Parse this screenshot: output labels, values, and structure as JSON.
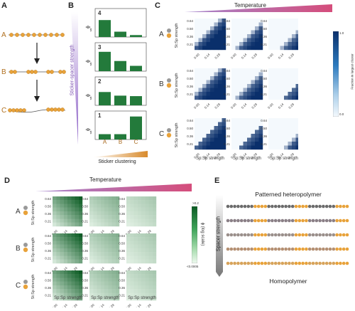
{
  "panels": {
    "A": {
      "letter": "A",
      "rows": [
        "A",
        "B",
        "C"
      ]
    },
    "B": {
      "letter": "B",
      "gradient_label": "Sticker-spacer strength",
      "xlabel": "Sticker clustering",
      "cats": [
        "A",
        "B",
        "C"
      ],
      "ylabel": "ϕ",
      "ylabel_sub": "sat"
    },
    "C": {
      "letter": "C",
      "header": "Temperature",
      "row_labels": [
        "A",
        "B",
        "C"
      ],
      "ylab": "St:Sp strength",
      "xlab": "Sp:Sp strength",
      "yticks": [
        "0.64",
        "0.50",
        "0.36",
        "0.21"
      ],
      "xticks": [
        "0.00",
        "0.14",
        "0.29"
      ],
      "cbar_title": "Fraction in largest cluster",
      "cbar_max": "1.0",
      "cbar_min": "0.0"
    },
    "D": {
      "letter": "D",
      "header": "Temperature",
      "row_labels": [
        "A",
        "B",
        "C"
      ],
      "ylab": "St:Sp strength",
      "xlab": "Sp:Sp strength",
      "yticks": [
        "0.64",
        "0.50",
        "0.36",
        "0.21"
      ],
      "xticks": [
        "0.00",
        "0.14",
        "0.29"
      ],
      "cbar_title": "ϕ (log scale)",
      "cbar_max": ">0.2",
      "cbar_min": "<0.0005"
    },
    "E": {
      "letter": "E",
      "top": "Patterned heteropolymer",
      "bottom": "Homopolymer",
      "arrow_label": "Spacer strength"
    }
  },
  "chart_data": [
    {
      "type": "bar",
      "title": "",
      "panel_b_index": "4",
      "categories": [
        "A",
        "B",
        "C"
      ],
      "values": [
        0.7,
        0.22,
        0.08
      ]
    },
    {
      "type": "bar",
      "title": "",
      "panel_b_index": "3",
      "categories": [
        "A",
        "B",
        "C"
      ],
      "values": [
        0.8,
        0.42,
        0.22
      ]
    },
    {
      "type": "bar",
      "title": "",
      "panel_b_index": "2",
      "categories": [
        "A",
        "B",
        "C"
      ],
      "values": [
        0.55,
        0.4,
        0.38
      ]
    },
    {
      "type": "bar",
      "title": "",
      "panel_b_index": "1",
      "categories": [
        "A",
        "B",
        "C"
      ],
      "values": [
        0.22,
        0.22,
        0.95
      ]
    }
  ],
  "colors": {
    "bar": "#237a3b",
    "blue_dark": "#0b3a7a",
    "green_dark": "#0b5b23",
    "orange": "#e8a23a",
    "gray": "#8b8b8b",
    "purple": "#a07ec9",
    "pink": "#d54d7b"
  }
}
